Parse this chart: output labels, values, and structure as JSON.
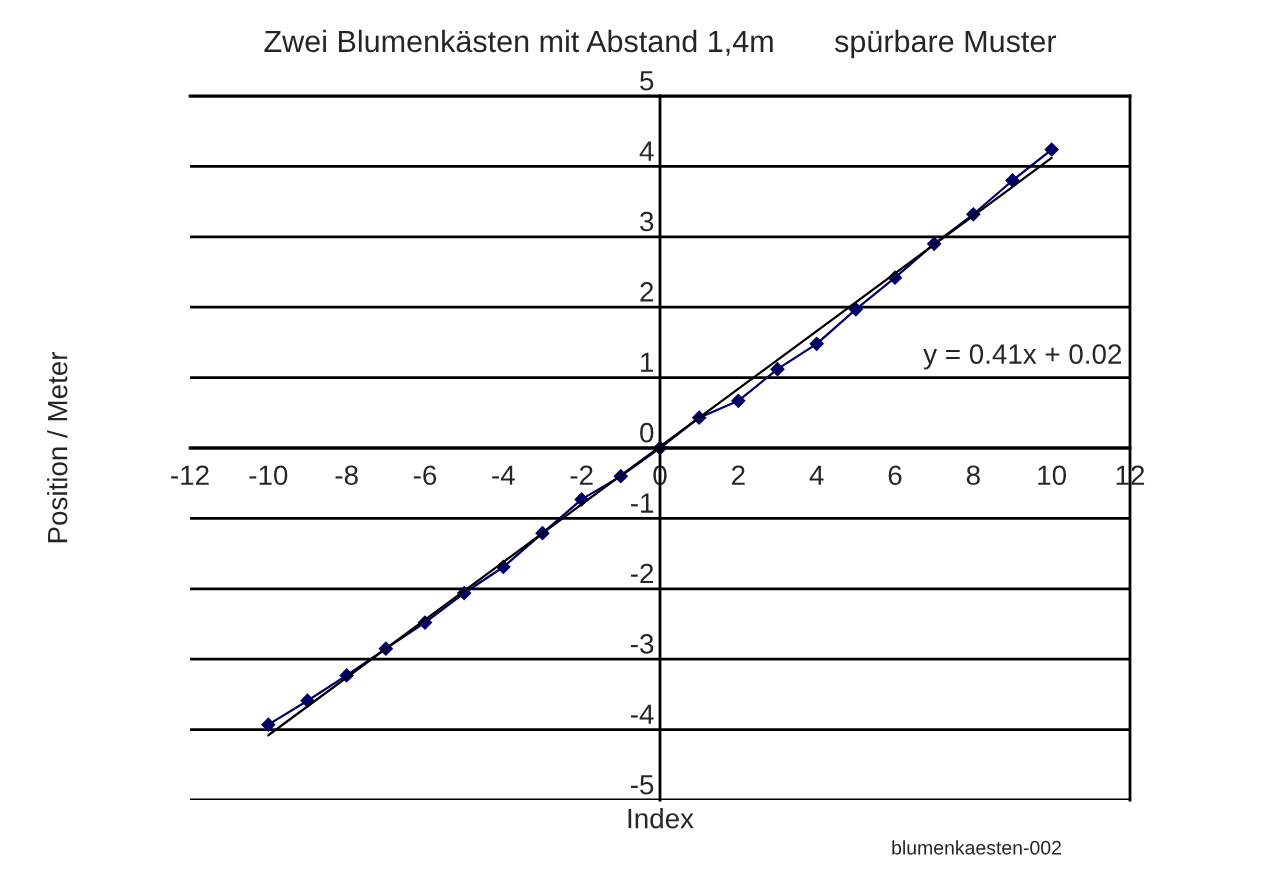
{
  "chart_data": {
    "type": "line",
    "title": "Zwei Blumenkästen mit Abstand 1,4m       spürbare Muster",
    "xlabel": "Index",
    "ylabel": "Position / Meter",
    "x": [
      -10,
      -9,
      -8,
      -7,
      -6,
      -5,
      -4,
      -3,
      -2,
      -1,
      0,
      1,
      2,
      3,
      4,
      5,
      6,
      7,
      8,
      9,
      10
    ],
    "series": [
      {
        "color": "#000066",
        "marker": "diamond",
        "values": [
          -3.93,
          -3.59,
          -3.23,
          -2.85,
          -2.48,
          -2.06,
          -1.69,
          -1.21,
          -0.73,
          -0.4,
          0,
          0.43,
          0.67,
          1.12,
          1.48,
          1.97,
          2.42,
          2.9,
          3.32,
          3.8,
          4.24
        ]
      },
      {
        "type": "line",
        "color": "#000000",
        "marker": "none",
        "x": [
          -10,
          10
        ],
        "values": [
          -4.08,
          4.12
        ]
      }
    ],
    "annotations": [
      "y = 0.41x + 0.02",
      "blumenkaesten-002"
    ],
    "xlim": [
      -12,
      12
    ],
    "ylim": [
      -5,
      5
    ],
    "xticks": [
      -12,
      -10,
      -8,
      -6,
      -4,
      -2,
      0,
      2,
      4,
      6,
      8,
      10,
      12
    ],
    "yticks": [
      -5,
      -4,
      -3,
      -2,
      -1,
      0,
      1,
      2,
      3,
      4,
      5
    ],
    "grid": "y",
    "legend": false
  }
}
